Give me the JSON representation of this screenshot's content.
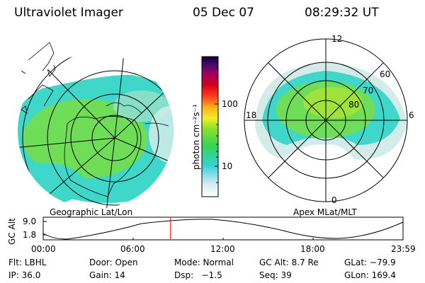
{
  "header": {
    "title": "Ultraviolet Imager",
    "date": "05 Dec 07",
    "time": "08:29:32 UT"
  },
  "colorbar": {
    "unit_label": "photon cm⁻²s⁻¹",
    "ticks": [
      "100",
      "10"
    ]
  },
  "left_panel": {
    "caption": "Geographic Lat/Lon"
  },
  "right_panel": {
    "caption": "Apex MLat/MLT",
    "mlt_labels": [
      "12",
      "18",
      "6",
      "0"
    ],
    "mlat_labels": [
      "60",
      "70",
      "80"
    ]
  },
  "altitude_plot": {
    "ylabel": "GC Alt",
    "yticks": [
      "9.0",
      "1.8"
    ],
    "xticks": [
      "00:00",
      "06:00",
      "12:00",
      "18:00",
      "23:59"
    ],
    "current_marker_hour": 8.49
  },
  "info": {
    "row1": {
      "flt": "Flt: LBHL",
      "door": "Door: Open",
      "mode": "Mode: Normal",
      "gcalt": "GC Alt: 8.7 Re",
      "glat": "GLat: −79.9"
    },
    "row2": {
      "ip": "IP: 36.0",
      "gain": "Gain: 14",
      "dsp": "Dsp:   −1.5",
      "seq": "Seq: 39",
      "glon": "GLon: 169.4"
    }
  },
  "colors": {
    "cyan": "#3fd7c9",
    "green": "#5fdc49",
    "pale": "#d4ece9",
    "marker": "#ff0000"
  }
}
